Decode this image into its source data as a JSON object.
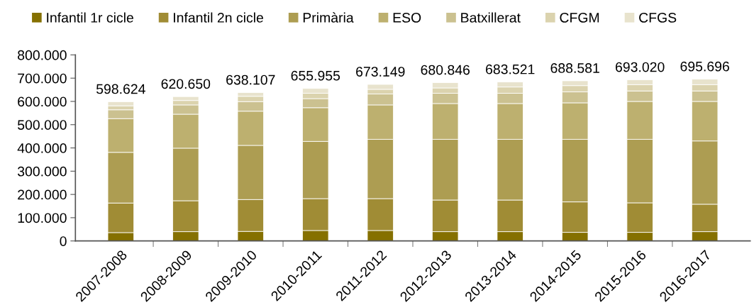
{
  "chart_data": {
    "type": "bar",
    "stacked": true,
    "categories": [
      "2007-2008",
      "2008-2009",
      "2009-2010",
      "2010-2011",
      "2011-2012",
      "2012-2013",
      "2013-2014",
      "2014-2015",
      "2015-2016",
      "2016-2017"
    ],
    "series": [
      {
        "name": "Infantil 1r cicle",
        "color": "#857000",
        "values": [
          36000,
          40000,
          41000,
          45000,
          45000,
          40000,
          40000,
          37000,
          37000,
          40000
        ]
      },
      {
        "name": "Infantil 2n cicle",
        "color": "#a08c35",
        "values": [
          127000,
          133000,
          137000,
          137000,
          137000,
          136000,
          136000,
          131000,
          127000,
          118000
        ]
      },
      {
        "name": "Primària",
        "color": "#ad9d52",
        "values": [
          218000,
          226000,
          233000,
          246000,
          255000,
          261000,
          261000,
          269000,
          273000,
          272000
        ]
      },
      {
        "name": "ESO",
        "color": "#bdb06f",
        "values": [
          145000,
          146000,
          147000,
          145000,
          148000,
          154000,
          154000,
          157000,
          163000,
          170000
        ]
      },
      {
        "name": "Batxillerat",
        "color": "#cbc190",
        "values": [
          38000,
          40000,
          41000,
          39000,
          47000,
          44000,
          44000,
          47000,
          45000,
          45000
        ]
      },
      {
        "name": "CFGM",
        "color": "#dbd3ae",
        "values": [
          17000,
          19000,
          23000,
          23000,
          20000,
          23000,
          27000,
          27000,
          27000,
          27000
        ]
      },
      {
        "name": "CFGS",
        "color": "#e8e3cd",
        "values": [
          17624,
          16650,
          16107,
          20955,
          21149,
          22846,
          21521,
          20581,
          21020,
          23696
        ]
      }
    ],
    "totals": [
      "598.624",
      "620.650",
      "638.107",
      "655.955",
      "673.149",
      "680.846",
      "683.521",
      "688.581",
      "693.020",
      "695.696"
    ],
    "ylim": [
      0,
      800000
    ],
    "yticks": [
      {
        "value": 0,
        "label": "0"
      },
      {
        "value": 100000,
        "label": "100.000"
      },
      {
        "value": 200000,
        "label": "200.000"
      },
      {
        "value": 300000,
        "label": "300.000"
      },
      {
        "value": 400000,
        "label": "400.000"
      },
      {
        "value": 500000,
        "label": "500.000"
      },
      {
        "value": 600000,
        "label": "600.000"
      },
      {
        "value": 700000,
        "label": "700.000"
      },
      {
        "value": 800000,
        "label": "800.000"
      }
    ],
    "grid": false,
    "legend": "top"
  }
}
